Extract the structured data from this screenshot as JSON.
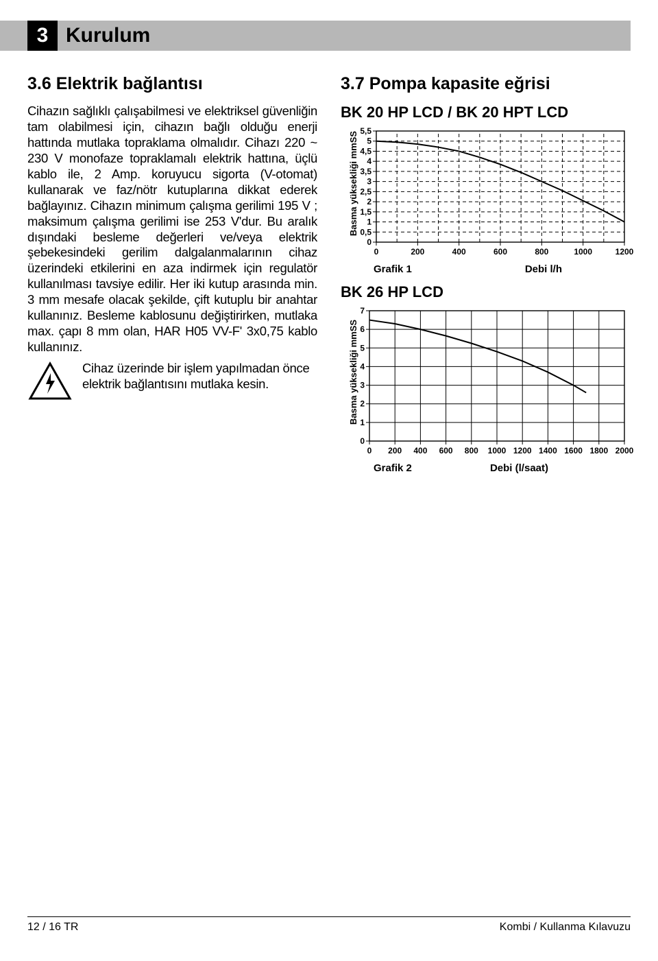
{
  "section": {
    "number": "3",
    "title": "Kurulum"
  },
  "left": {
    "heading": "3.6 Elektrik bağlantısı",
    "paragraph": "Cihazın sağlıklı çalışabilmesi ve elektriksel güvenliğin tam olabilmesi için, cihazın bağlı olduğu enerji hattında mutlaka topraklama olmalıdır. Cihazı 220 ~ 230 V monofaze topraklamalı elektrik hattına, üçlü kablo ile, 2 Amp. koruyucu sigorta (V-otomat) kullanarak ve faz/nötr kutuplarına dikkat ederek bağlayınız. Cihazın minimum çalışma gerilimi 195 V ; maksimum çalışma gerilimi ise 253 V'dur. Bu aralık dışındaki besleme değerleri ve/veya elektrik şebekesindeki gerilim dalgalanmalarının cihaz üzerindeki etkilerini en aza indirmek için regulatör kullanılması tavsiye edilir. Her iki kutup arasında min. 3 mm mesafe olacak şekilde, çift kutuplu bir anahtar kullanınız. Besleme kablosunu değiştirirken, mutlaka max. çapı 8 mm olan, HAR H05 VV-F' 3x0,75 kablo kullanınız.",
    "warning": "Cihaz üzerinde bir işlem yapılmadan önce elektrik bağlantısını mutlaka kesin."
  },
  "right": {
    "heading": "3.7 Pompa kapasite eğrisi",
    "chart1": {
      "title": "BK 20 HP LCD / BK 20 HPT LCD",
      "type": "line",
      "ylabel": "Basma yüksekliği mmSS",
      "xlabel": "Debi l/h",
      "caption": "Grafik 1",
      "xlim": [
        0,
        1200
      ],
      "xticks": [
        0,
        200,
        400,
        600,
        800,
        1000,
        1200
      ],
      "ylim": [
        0,
        5.5
      ],
      "yticks": [
        0,
        0.5,
        1,
        1.5,
        2,
        2.5,
        3,
        3.5,
        4,
        4.5,
        5,
        5.5
      ],
      "ytick_labels": [
        "0",
        "0,5",
        "1",
        "1,5",
        "2",
        "2,5",
        "3",
        "3,5",
        "4",
        "4,5",
        "5",
        "5,5"
      ],
      "grid": {
        "style": "dashed",
        "color": "#000000"
      },
      "guides_x": [
        100,
        300,
        500,
        700,
        900,
        1100
      ],
      "line": {
        "color": "#000000",
        "width": 2,
        "points": [
          [
            0,
            5.0
          ],
          [
            100,
            4.95
          ],
          [
            200,
            4.85
          ],
          [
            300,
            4.7
          ],
          [
            400,
            4.5
          ],
          [
            500,
            4.2
          ],
          [
            600,
            3.85
          ],
          [
            700,
            3.45
          ],
          [
            800,
            3.0
          ],
          [
            900,
            2.55
          ],
          [
            1000,
            2.05
          ],
          [
            1100,
            1.55
          ],
          [
            1200,
            1.0
          ]
        ]
      },
      "tick_fontsize": 12
    },
    "chart2": {
      "title": "BK 26 HP LCD",
      "type": "line",
      "ylabel": "Basma yüksekliği mmSS",
      "xlabel": "Debi (l/saat)",
      "caption": "Grafik 2",
      "xlim": [
        0,
        2000
      ],
      "xticks": [
        0,
        200,
        400,
        600,
        800,
        1000,
        1200,
        1400,
        1600,
        1800,
        2000
      ],
      "ylim": [
        0,
        7
      ],
      "yticks": [
        0,
        1,
        2,
        3,
        4,
        5,
        6,
        7
      ],
      "grid": {
        "style": "solid",
        "color": "#000000"
      },
      "line": {
        "color": "#000000",
        "width": 2,
        "points": [
          [
            0,
            6.5
          ],
          [
            200,
            6.3
          ],
          [
            400,
            6.0
          ],
          [
            600,
            5.65
          ],
          [
            800,
            5.25
          ],
          [
            1000,
            4.8
          ],
          [
            1200,
            4.3
          ],
          [
            1400,
            3.7
          ],
          [
            1600,
            3.0
          ],
          [
            1700,
            2.6
          ]
        ]
      },
      "tick_fontsize": 12
    }
  },
  "footer": {
    "left": "12 / 16 TR",
    "right": "Kombi / Kullanma Kılavuzu"
  }
}
